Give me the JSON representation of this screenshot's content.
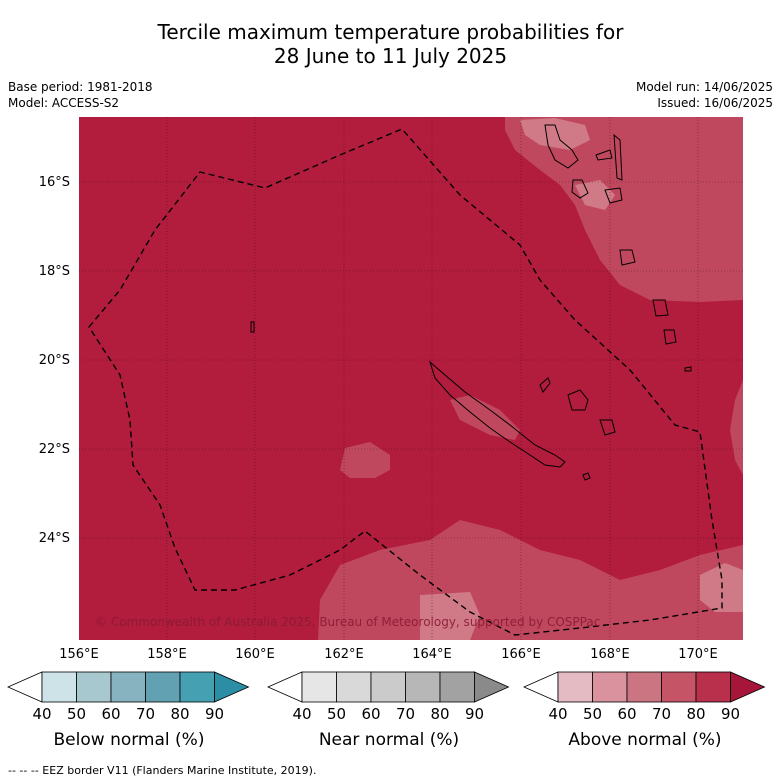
{
  "title_line1": "Tercile maximum temperature probabilities for",
  "title_line2": "28 June to 11 July 2025",
  "base_period": "Base period: 1981-2018",
  "model": "Model: ACCESS-S2",
  "model_run": "Model run: 14/06/2025",
  "issued": "Issued: 16/06/2025",
  "copyright": "© Commonwealth of Australia 2025, Bureau of Meteorology, supported by COSPPac",
  "footer": "-- -- -- EEZ border V11 (Flanders Marine Institute, 2019).",
  "lat_labels": [
    "16°S",
    "18°S",
    "20°S",
    "22°S",
    "24°S"
  ],
  "lon_labels": [
    "156°E",
    "158°E",
    "160°E",
    "162°E",
    "164°E",
    "166°E",
    "168°E",
    "170°E"
  ],
  "colorbars": [
    {
      "title": "Below normal (%)",
      "ticks": [
        "40",
        "50",
        "60",
        "70",
        "80",
        "90"
      ],
      "colors": [
        "#ffffff",
        "#cde3e8",
        "#a7c8cf",
        "#86b3bf",
        "#62a1b1",
        "#45a0b2",
        "#2b8ea4"
      ]
    },
    {
      "title": "Near normal (%)",
      "ticks": [
        "40",
        "50",
        "60",
        "70",
        "80",
        "90"
      ],
      "colors": [
        "#ffffff",
        "#e6e6e6",
        "#d9d9d9",
        "#cbcbcb",
        "#b7b7b7",
        "#a2a2a2",
        "#8a8a8a"
      ]
    },
    {
      "title": "Above normal (%)",
      "ticks": [
        "40",
        "50",
        "60",
        "70",
        "80",
        "90"
      ],
      "colors": [
        "#ffffff",
        "#e4bac3",
        "#d9929e",
        "#cc7582",
        "#c45466",
        "#b8304b",
        "#a6163a"
      ]
    }
  ],
  "map_colors": {
    "base": "#b21c3d",
    "lighter_70_80": "#c0485e",
    "lighter_60_70": "#d07a88"
  }
}
